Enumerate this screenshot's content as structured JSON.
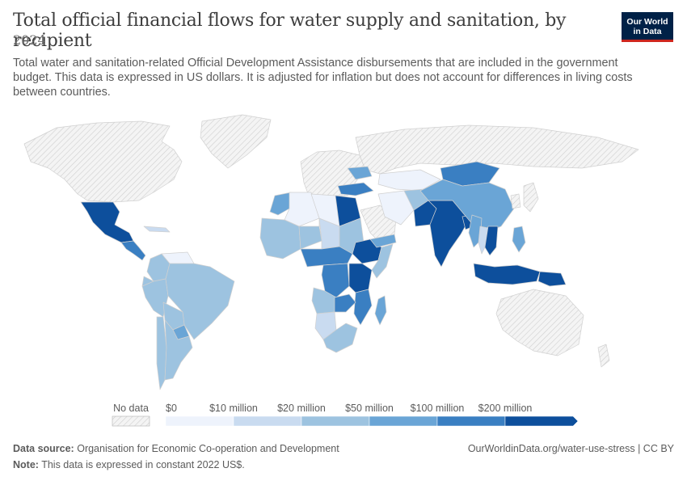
{
  "title": "Total official financial flows for water supply and sanitation, by recipient",
  "year": "2024",
  "subtitle": "Total water and sanitation-related Official Development Assistance disbursements that are included in the government budget. This data is expressed in US dollars. It is adjusted for inflation but does not account for differences in living costs between countries.",
  "logo": {
    "line1": "Our World",
    "line2": "in Data"
  },
  "legend": {
    "no_data_label": "No data",
    "bins": [
      {
        "label": "$0",
        "color": "#eef3fc"
      },
      {
        "label": "$10 million",
        "color": "#c9dbf0"
      },
      {
        "label": "$20 million",
        "color": "#9dc3e0"
      },
      {
        "label": "$50 million",
        "color": "#6aa5d6"
      },
      {
        "label": "$100 million",
        "color": "#3a7fc2"
      },
      {
        "label": "$200 million",
        "color": "#0d4f9c"
      }
    ]
  },
  "footer": {
    "source_label": "Data source:",
    "source_text": "Organisation for Economic Co-operation and Development",
    "note_label": "Note:",
    "note_text": "This data is expressed in constant 2022 US$.",
    "url": "OurWorldinData.org/water-use-stress | CC BY"
  },
  "colors": {
    "nodata": "#f2f2f2",
    "border": "#d8d8d8",
    "hatch": "#cfcfcf"
  },
  "regions": [
    {
      "name": "North America",
      "level": "nodata"
    },
    {
      "name": "Greenland",
      "level": "nodata"
    },
    {
      "name": "Mexico",
      "level": 6
    },
    {
      "name": "Central America",
      "level": 5
    },
    {
      "name": "Cuba",
      "level": 2
    },
    {
      "name": "Colombia",
      "level": 3
    },
    {
      "name": "Venezuela",
      "level": 1
    },
    {
      "name": "Ecuador",
      "level": 3
    },
    {
      "name": "Peru",
      "level": 3
    },
    {
      "name": "Brazil",
      "level": 3
    },
    {
      "name": "Bolivia",
      "level": 3
    },
    {
      "name": "Paraguay",
      "level": 4
    },
    {
      "name": "Chile",
      "level": 3
    },
    {
      "name": "Argentina",
      "level": 3
    },
    {
      "name": "Europe",
      "level": "nodata"
    },
    {
      "name": "Russia",
      "level": "nodata"
    },
    {
      "name": "Ukraine",
      "level": 4
    },
    {
      "name": "Turkey",
      "level": 5
    },
    {
      "name": "Morocco",
      "level": 4
    },
    {
      "name": "Algeria",
      "level": 1
    },
    {
      "name": "Libya",
      "level": 1
    },
    {
      "name": "Egypt",
      "level": 6
    },
    {
      "name": "West Africa",
      "level": 3
    },
    {
      "name": "Niger",
      "level": 3
    },
    {
      "name": "Chad",
      "level": 2
    },
    {
      "name": "Sudan",
      "level": 3
    },
    {
      "name": "Ethiopia",
      "level": 6
    },
    {
      "name": "Somalia",
      "level": 3
    },
    {
      "name": "Central Africa",
      "level": 5
    },
    {
      "name": "DR Congo",
      "level": 5
    },
    {
      "name": "Tanzania",
      "level": 6
    },
    {
      "name": "Mozambique",
      "level": 5
    },
    {
      "name": "Angola",
      "level": 3
    },
    {
      "name": "Zambia",
      "level": 5
    },
    {
      "name": "Namibia",
      "level": 2
    },
    {
      "name": "South Africa",
      "level": 3
    },
    {
      "name": "Madagascar",
      "level": 4
    },
    {
      "name": "Saudi Arabia",
      "level": "nodata"
    },
    {
      "name": "Yemen",
      "level": 4
    },
    {
      "name": "Iran",
      "level": 1
    },
    {
      "name": "Kazakhstan",
      "level": 1
    },
    {
      "name": "Afghanistan",
      "level": 3
    },
    {
      "name": "Pakistan",
      "level": 6
    },
    {
      "name": "India",
      "level": 6
    },
    {
      "name": "Bangladesh",
      "level": 6
    },
    {
      "name": "Mongolia",
      "level": 5
    },
    {
      "name": "China",
      "level": 4
    },
    {
      "name": "Myanmar",
      "level": 4
    },
    {
      "name": "Thailand",
      "level": 2
    },
    {
      "name": "Vietnam",
      "level": 6
    },
    {
      "name": "Philippines",
      "level": 4
    },
    {
      "name": "Indonesia",
      "level": 6
    },
    {
      "name": "Papua New Guinea",
      "level": 6
    },
    {
      "name": "Australia",
      "level": "nodata"
    },
    {
      "name": "Japan",
      "level": "nodata"
    },
    {
      "name": "Korea",
      "level": "nodata"
    },
    {
      "name": "New Zealand",
      "level": "nodata"
    }
  ]
}
